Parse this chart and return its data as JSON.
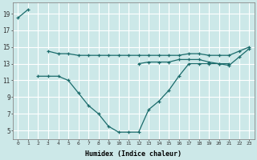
{
  "xlabel": "Humidex (Indice chaleur)",
  "background_color": "#cce8e8",
  "grid_color": "#ffffff",
  "line_color": "#1a6b6b",
  "x_values": [
    0,
    1,
    2,
    3,
    4,
    5,
    6,
    7,
    8,
    9,
    10,
    11,
    12,
    13,
    14,
    15,
    16,
    17,
    18,
    19,
    20,
    21,
    22,
    23
  ],
  "series1": [
    18.5,
    19.5,
    null,
    14.5,
    14.2,
    14.2,
    14.0,
    14.0,
    14.0,
    14.0,
    14.0,
    14.0,
    14.0,
    14.0,
    14.0,
    14.0,
    14.0,
    14.2,
    14.2,
    14.0,
    14.0,
    14.0,
    14.5,
    15.0
  ],
  "series2": [
    null,
    null,
    null,
    null,
    null,
    null,
    null,
    null,
    null,
    null,
    null,
    null,
    13.0,
    13.2,
    13.2,
    13.2,
    13.5,
    13.5,
    13.5,
    13.2,
    13.0,
    12.8,
    13.8,
    14.8
  ],
  "series3": [
    null,
    null,
    11.5,
    11.5,
    11.5,
    11.0,
    9.5,
    8.0,
    7.0,
    5.5,
    4.8,
    4.8,
    4.8,
    7.5,
    8.5,
    9.8,
    11.5,
    13.0,
    13.0,
    13.0,
    13.0,
    13.0,
    null,
    null
  ],
  "ylim": [
    4,
    20
  ],
  "xlim": [
    -0.5,
    23.5
  ],
  "yticks": [
    5,
    7,
    9,
    11,
    13,
    15,
    17,
    19
  ],
  "xticks": [
    0,
    1,
    2,
    3,
    4,
    5,
    6,
    7,
    8,
    9,
    10,
    11,
    12,
    13,
    14,
    15,
    16,
    17,
    18,
    19,
    20,
    21,
    22,
    23
  ]
}
